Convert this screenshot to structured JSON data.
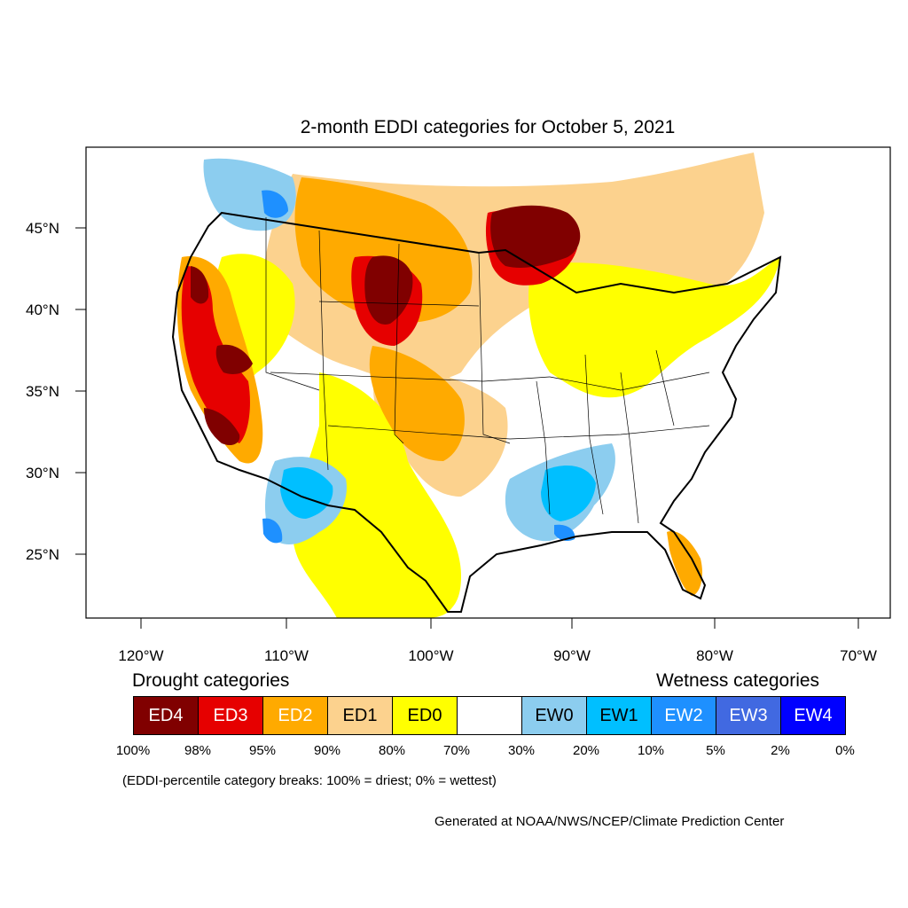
{
  "title": "2-month EDDI categories for October 5, 2021",
  "y_axis_labels": [
    "45°N",
    "40°N",
    "35°N",
    "30°N",
    "25°N"
  ],
  "x_axis_labels": [
    "120°W",
    "110°W",
    "100°W",
    "90°W",
    "80°W",
    "70°W"
  ],
  "legend": {
    "drought_heading": "Drought categories",
    "wetness_heading": "Wetness categories",
    "categories": [
      {
        "label": "ED4",
        "color": "#800000",
        "text_color": "#ffffff"
      },
      {
        "label": "ED3",
        "color": "#e60000",
        "text_color": "#ffffff"
      },
      {
        "label": "ED2",
        "color": "#ffaa00",
        "text_color": "#ffffff"
      },
      {
        "label": "ED1",
        "color": "#fcd28e",
        "text_color": "#000000"
      },
      {
        "label": "ED0",
        "color": "#ffff00",
        "text_color": "#000000"
      },
      {
        "label": "",
        "color": "#ffffff",
        "text_color": "#000000"
      },
      {
        "label": "EW0",
        "color": "#8ccdef",
        "text_color": "#000000"
      },
      {
        "label": "EW1",
        "color": "#00bfff",
        "text_color": "#000000"
      },
      {
        "label": "EW2",
        "color": "#1e90ff",
        "text_color": "#ffffff"
      },
      {
        "label": "EW3",
        "color": "#4169e1",
        "text_color": "#ffffff"
      },
      {
        "label": "EW4",
        "color": "#0000ff",
        "text_color": "#ffffff"
      }
    ],
    "breaks": [
      "100%",
      "98%",
      "95%",
      "90%",
      "80%",
      "70%",
      "30%",
      "20%",
      "10%",
      "5%",
      "2%",
      "0%"
    ]
  },
  "note": "(EDDI-percentile category breaks: 100% = driest; 0% = wettest)",
  "credit": "Generated at NOAA/NWS/NCEP/Climate Prediction Center"
}
